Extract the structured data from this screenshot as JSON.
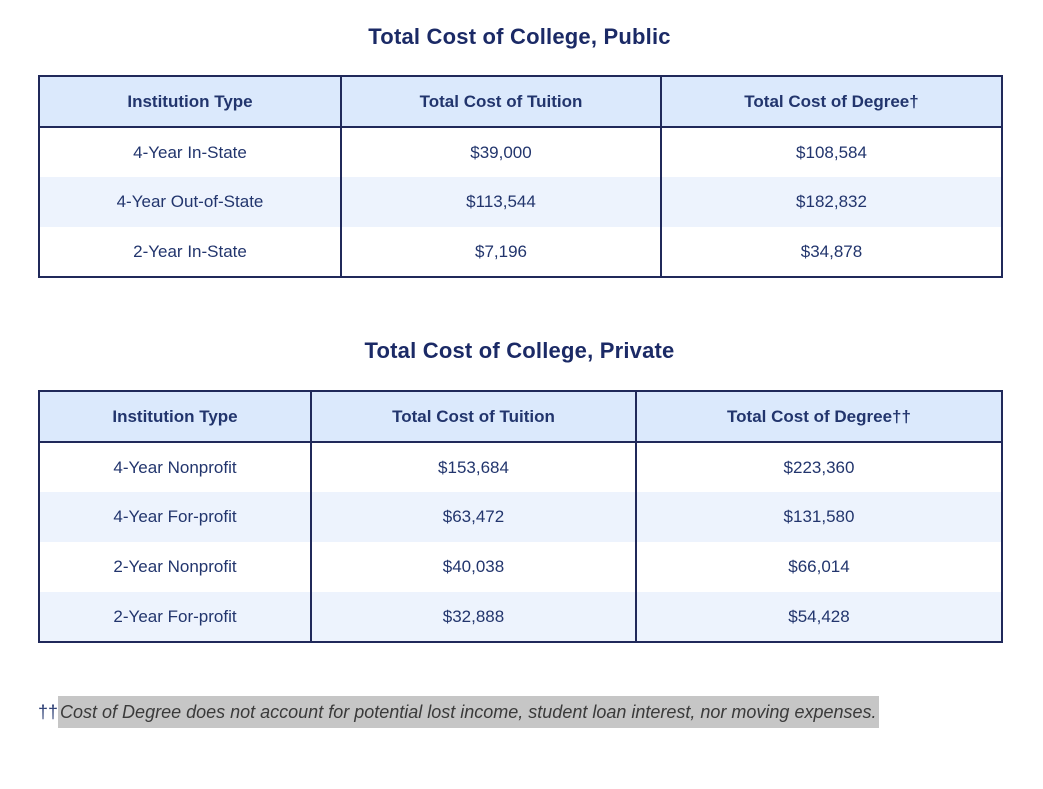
{
  "colors": {
    "navy_text": "#22356d",
    "title": "#1b2a66",
    "table_border": "#20295a",
    "header_row_bg": "#dbe9fc",
    "alt_row_bg": "#edf3fd",
    "selection_highlight": "#c6c6c6",
    "footnote_text": "#3a3a3a"
  },
  "tables": [
    {
      "title": "Total Cost of College, Public",
      "columns": [
        "Institution Type",
        "Total Cost of Tuition",
        "Total Cost of Degree†"
      ],
      "rows": [
        [
          "4-Year In-State",
          "$39,000",
          "$108,584"
        ],
        [
          "4-Year Out-of-State",
          "$113,544",
          "$182,832"
        ],
        [
          "2-Year In-State",
          "$7,196",
          "$34,878"
        ]
      ]
    },
    {
      "title": "Total Cost of College, Private",
      "columns": [
        "Institution Type",
        "Total Cost of Tuition",
        "Total Cost of Degree††"
      ],
      "rows": [
        [
          "4-Year Nonprofit",
          "$153,684",
          "$223,360"
        ],
        [
          "4-Year For-profit",
          "$63,472",
          "$131,580"
        ],
        [
          "2-Year Nonprofit",
          "$40,038",
          "$66,014"
        ],
        [
          "2-Year For-profit",
          "$32,888",
          "$54,428"
        ]
      ]
    }
  ],
  "footnote": {
    "marker": "††",
    "text": "Cost of Degree does not account for potential lost income, student loan interest, nor moving expenses.",
    "highlighted": true
  }
}
